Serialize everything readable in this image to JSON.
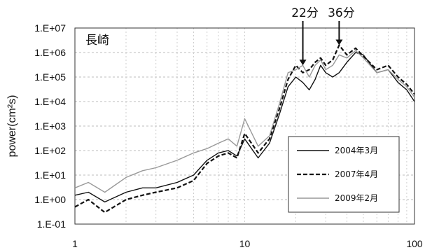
{
  "chart_data": {
    "type": "line",
    "title": "長崎",
    "ylabel": "power(cm²s)",
    "xlabel": "",
    "x_scale": "log",
    "y_scale": "log",
    "xlim": [
      1,
      100
    ],
    "ylim": [
      0.1,
      10000000
    ],
    "x_ticks": [
      "1",
      "10",
      "100"
    ],
    "y_ticks": [
      "1.E-01",
      "1.E+00",
      "1.E+01",
      "1.E+02",
      "1.E+03",
      "1.E+04",
      "1.E+05",
      "1.E+06",
      "1.E+07"
    ],
    "grid": true,
    "legend_position": "bottom-right",
    "annotations": [
      {
        "text": "22分",
        "x": 22,
        "y": 300000
      },
      {
        "text": "36分",
        "x": 36,
        "y": 2000000
      }
    ],
    "series": [
      {
        "name": "2004年3月",
        "color": "#111111",
        "dash": "solid",
        "x": [
          1,
          1.2,
          1.5,
          2,
          2.5,
          3,
          4,
          5,
          6,
          7,
          8,
          9,
          10,
          12,
          14,
          16,
          18,
          20,
          22,
          24,
          26,
          28,
          30,
          33,
          36,
          40,
          45,
          50,
          60,
          70,
          80,
          90,
          100
        ],
        "y": [
          1.5,
          2,
          0.8,
          2,
          3,
          3,
          5,
          10,
          40,
          80,
          100,
          60,
          300,
          50,
          200,
          3000,
          40000,
          100000,
          60000,
          30000,
          80000,
          300000,
          150000,
          100000,
          150000,
          400000,
          1000000,
          800000,
          150000,
          200000,
          60000,
          30000,
          10000
        ]
      },
      {
        "name": "2007年4月",
        "color": "#111111",
        "dash": "dashed",
        "x": [
          1,
          1.2,
          1.5,
          2,
          2.5,
          3,
          4,
          5,
          6,
          7,
          8,
          9,
          10,
          12,
          14,
          16,
          18,
          20,
          22,
          24,
          26,
          28,
          30,
          33,
          36,
          40,
          45,
          50,
          60,
          70,
          80,
          90,
          100
        ],
        "y": [
          0.5,
          1,
          0.3,
          1,
          1.5,
          2,
          3,
          6,
          30,
          60,
          80,
          50,
          500,
          80,
          300,
          5000,
          80000,
          300000,
          150000,
          200000,
          400000,
          600000,
          300000,
          500000,
          2000000,
          800000,
          1500000,
          700000,
          200000,
          300000,
          100000,
          50000,
          20000
        ]
      },
      {
        "name": "2009年2月",
        "color": "#999999",
        "dash": "solid",
        "x": [
          1,
          1.2,
          1.5,
          2,
          2.5,
          3,
          4,
          5,
          6,
          7,
          8,
          9,
          10,
          12,
          14,
          16,
          18,
          20,
          22,
          24,
          26,
          28,
          30,
          33,
          36,
          40,
          45,
          50,
          60,
          70,
          80,
          90,
          100
        ],
        "y": [
          3,
          5,
          2,
          8,
          15,
          20,
          40,
          80,
          120,
          200,
          300,
          150,
          2000,
          150,
          400,
          8000,
          150000,
          200000,
          300000,
          100000,
          300000,
          500000,
          200000,
          300000,
          800000,
          600000,
          1200000,
          600000,
          150000,
          200000,
          80000,
          40000,
          15000
        ]
      }
    ]
  }
}
